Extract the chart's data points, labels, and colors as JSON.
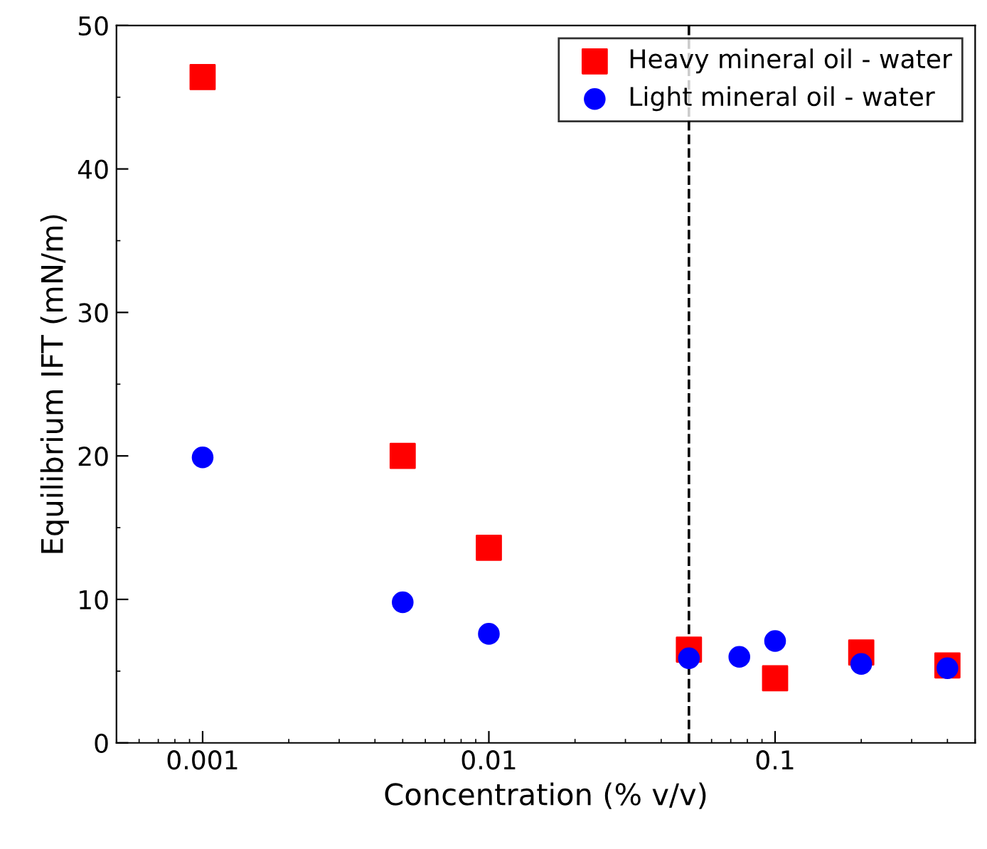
{
  "chart_data": {
    "type": "scatter",
    "xlabel": "Concentration (% v/v)",
    "ylabel": "Equilibrium IFT (mN/m)",
    "log": "x",
    "xlim": [
      0.0005,
      0.5
    ],
    "xticks": [
      0.001,
      0.01,
      0.1
    ],
    "ylim": [
      0,
      50
    ],
    "yticks": [
      0,
      10,
      20,
      30,
      40,
      50
    ],
    "grid": false,
    "legend": "top right",
    "series": [
      {
        "name": "Heavy mineral oil - water",
        "color": "#ff0000",
        "marker": "square",
        "x": [
          0.001,
          0.005,
          0.01,
          0.05,
          0.1,
          0.2,
          0.4
        ],
        "values": [
          46.4,
          20.0,
          13.6,
          6.5,
          4.5,
          6.3,
          5.4
        ]
      },
      {
        "name": "Light mineral oil - water",
        "color": "#0000ff",
        "marker": "circle",
        "x": [
          0.001,
          0.005,
          0.01,
          0.05,
          0.075,
          0.1,
          0.2,
          0.4
        ],
        "values": [
          19.9,
          9.8,
          7.6,
          5.9,
          6.0,
          7.1,
          5.5,
          5.2
        ]
      }
    ],
    "ref_lines": [
      {
        "axis": "x",
        "value": 0.05,
        "color": "#000000",
        "line_style": "dashed"
      }
    ]
  }
}
